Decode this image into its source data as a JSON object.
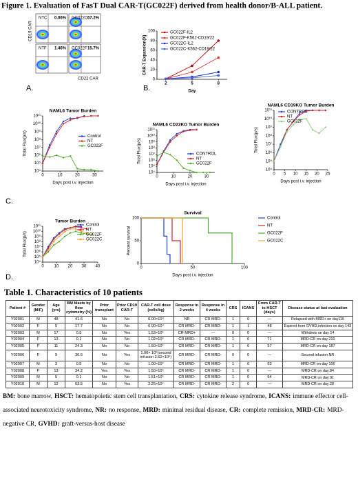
{
  "title": "Figure 1. Evaluation of FasT Dual CAR-T(GC022F) derived from health donor/B-ALL patient.",
  "panel_labels": [
    "A.",
    "B.",
    "C.",
    "D."
  ],
  "flow_panel": {
    "y_label": "CD19 CAR",
    "x_label": "CD22 CAR",
    "plots": [
      {
        "name": "NTC",
        "label": "0.06%"
      },
      {
        "name": "GC022C",
        "label": "67.2%"
      },
      {
        "name": "NTF",
        "label": "1.46%"
      },
      {
        "name": "GC022F",
        "label": "15.7%"
      }
    ]
  },
  "chart_data": [
    {
      "type": "line",
      "x_label": "Day",
      "y_label": "CAR-T Expansion(X)",
      "x": [
        2,
        5,
        8
      ],
      "xlim": [
        1,
        9
      ],
      "xticks": [
        2,
        5,
        8
      ],
      "ylim": [
        0,
        100
      ],
      "yticks": [
        0,
        20,
        40,
        60,
        80,
        100
      ],
      "legend": "upper left",
      "series": [
        {
          "name": "GC022F-IL2",
          "color": "#c00000",
          "values": [
            1,
            28,
            80
          ]
        },
        {
          "name": "GC022F-K562-CD19/22",
          "color": "#e03030",
          "values": [
            1,
            15,
            45
          ]
        },
        {
          "name": "GC022C-IL2",
          "color": "#1f2fc0",
          "values": [
            1,
            5,
            15
          ]
        },
        {
          "name": "GC022C-K562-CD19/22",
          "color": "#4060e0",
          "values": [
            1,
            3,
            8
          ]
        }
      ]
    },
    {
      "type": "line",
      "log": true,
      "title": "NAML6 Tumor Burden",
      "x_label": "Days post i.v. injection",
      "y_label": "Total Flux(p/s)",
      "x": [
        0,
        4,
        8,
        12,
        16,
        20,
        24,
        28,
        32
      ],
      "xlim": [
        0,
        35
      ],
      "xticks": [
        0,
        10,
        20,
        30
      ],
      "ylim": [
        10000,
        100000000000
      ],
      "legend": "center right",
      "yticks": [
        {
          "value": 10000,
          "label": "10⁴"
        },
        {
          "value": 100000,
          "label": "10⁵"
        },
        {
          "value": 1000000,
          "label": "10⁶"
        },
        {
          "value": 10000000,
          "label": "10⁷"
        },
        {
          "value": 100000000,
          "label": "10⁸"
        },
        {
          "value": 1000000000,
          "label": "10⁹"
        },
        {
          "value": 10000000000,
          "label": "10¹⁰"
        },
        {
          "value": 100000000000,
          "label": "10¹¹"
        }
      ],
      "series": [
        {
          "name": "Control",
          "color": "#1f3fd1",
          "values": [
            100000,
            20000000,
            1000000000,
            20000000000,
            50000000000,
            50000000000,
            100000000000,
            null,
            null
          ]
        },
        {
          "name": "NT",
          "color": "#d62020",
          "values": [
            100000,
            10000000,
            500000000,
            10000000000,
            30000000000,
            60000000000,
            80000000000,
            100000000000,
            100000000000
          ]
        },
        {
          "name": "GC022F",
          "color": "#4caf2a",
          "values": [
            800000,
            600000,
            1000000,
            500000,
            800000,
            20000,
            15000,
            15000,
            10000
          ]
        }
      ]
    },
    {
      "type": "line",
      "log": true,
      "title": "NAML6 CD22KO Tumor Burden",
      "x_label": "Days post i.v. injection",
      "y_label": "Total Flux(p/s)",
      "x": [
        0,
        4,
        8,
        12,
        16,
        20,
        24,
        28,
        32
      ],
      "xlim": [
        0,
        35
      ],
      "xticks": [
        0,
        10,
        20,
        30
      ],
      "ylim": [
        10000,
        100000000000
      ],
      "legend": "lower right",
      "yticks": [
        {
          "value": 10000,
          "label": "10⁴"
        },
        {
          "value": 100000,
          "label": "10⁵"
        },
        {
          "value": 1000000,
          "label": "10⁶"
        },
        {
          "value": 10000000,
          "label": "10⁷"
        },
        {
          "value": 100000000,
          "label": "10⁸"
        },
        {
          "value": 1000000000,
          "label": "10⁹"
        },
        {
          "value": 10000000000,
          "label": "10¹⁰"
        },
        {
          "value": 100000000000,
          "label": "10¹¹"
        }
      ],
      "series": [
        {
          "name": "CONTROL",
          "color": "#1f3fd1",
          "values": [
            200000,
            30000000,
            2000000000,
            20000000000,
            60000000000,
            100000000000,
            100000000000,
            null,
            null
          ]
        },
        {
          "name": "NT",
          "color": "#d62020",
          "values": [
            200000,
            20000000,
            1000000000,
            10000000000,
            50000000000,
            80000000000,
            100000000000,
            null,
            null
          ]
        },
        {
          "name": "GC022F",
          "color": "#4caf2a",
          "values": [
            5000000,
            20000000,
            8000000,
            1000000,
            50000,
            20000,
            10000,
            10000,
            10000
          ]
        }
      ]
    },
    {
      "type": "line",
      "log": true,
      "title": "NAML6 CD19KO Tumor Burden",
      "x_label": "Days post i.v. injection",
      "y_label": "Total Flux(p/s)",
      "x": [
        0,
        3,
        6,
        9,
        12,
        15,
        18,
        21,
        24
      ],
      "xlim": [
        0,
        25
      ],
      "xticks": [
        0,
        5,
        10,
        15,
        20,
        25
      ],
      "ylim": [
        10000,
        100000000000
      ],
      "legend": "upper left",
      "yticks": [
        {
          "value": 10000,
          "label": "10⁴"
        },
        {
          "value": 100000,
          "label": "10⁵"
        },
        {
          "value": 1000000,
          "label": "10⁶"
        },
        {
          "value": 10000000,
          "label": "10⁷"
        },
        {
          "value": 100000000,
          "label": "10⁸"
        },
        {
          "value": 1000000000,
          "label": "10⁹"
        },
        {
          "value": 10000000000,
          "label": "10¹⁰"
        },
        {
          "value": 100000000000,
          "label": "10¹¹"
        }
      ],
      "series": [
        {
          "name": "CONTROL",
          "color": "#1f3fd1",
          "values": [
            100000,
            10000000,
            500000000,
            5000000000,
            50000000000,
            100000000000,
            100000000000,
            100000000000,
            100000000000
          ]
        },
        {
          "name": "NT",
          "color": "#d62020",
          "values": [
            100000,
            5000000,
            500000000,
            5000000000,
            30000000000,
            80000000000,
            100000000000,
            100000000000,
            100000000000
          ]
        },
        {
          "name": "GC022F",
          "color": "#8fcf7a",
          "values": [
            100000,
            5000000,
            300000000,
            2000000000,
            8000000000,
            10000000000,
            500000000,
            200000000,
            1000000000
          ]
        }
      ]
    },
    {
      "type": "line",
      "log": true,
      "title": "Tumor Burden",
      "y_label": "Total Flux(p/s)",
      "x": [
        0,
        4,
        8,
        12,
        16,
        20,
        24,
        28,
        32,
        36
      ],
      "xlim": [
        0,
        40
      ],
      "xticks": [
        0,
        10,
        20,
        30,
        40
      ],
      "ylim": [
        10000,
        100000000000
      ],
      "legend": "upper right",
      "yticks": [
        {
          "value": 10000,
          "label": "10⁴"
        },
        {
          "value": 100000,
          "label": "10⁵"
        },
        {
          "value": 1000000,
          "label": "10⁶"
        },
        {
          "value": 10000000,
          "label": "10⁷"
        },
        {
          "value": 100000000,
          "label": "10⁸"
        },
        {
          "value": 1000000000,
          "label": "10⁹"
        },
        {
          "value": 10000000000,
          "label": "10¹⁰"
        },
        {
          "value": 100000000000,
          "label": "10¹¹"
        }
      ],
      "series": [
        {
          "name": "Control",
          "color": "#1f3fd1",
          "values": [
            100000,
            10000000,
            500000000,
            5000000000,
            30000000000,
            50000000000,
            100000000000,
            80000000000,
            null,
            null
          ]
        },
        {
          "name": "NT",
          "color": "#d62020",
          "values": [
            100000,
            5000000,
            300000000,
            3000000000,
            20000000000,
            50000000000,
            80000000000,
            50000000000,
            30000000000,
            null
          ]
        },
        {
          "name": "GC022F",
          "color": "#4caf2a",
          "values": [
            100000,
            1000000,
            20000000,
            100000000,
            1000000000,
            5000000000,
            10000000000,
            5000000000,
            3000000000,
            3000000000
          ]
        },
        {
          "name": "GC022C",
          "color": "#f0a030",
          "values": [
            100000,
            2000000,
            100000000,
            1000000000,
            8000000000,
            30000000000,
            30000000000,
            10000000000,
            5000000000,
            2000000000
          ]
        }
      ]
    },
    {
      "type": "line",
      "steps": true,
      "title": "Survival",
      "x_label": "Days post i.v. injection",
      "y_label": "Percent survival",
      "xlim": [
        0,
        100
      ],
      "xticks": [
        0,
        50,
        100
      ],
      "ylim": [
        0,
        100
      ],
      "yticks": [
        0,
        50,
        100
      ],
      "legend": "right",
      "series": [
        {
          "name": "Control",
          "color": "#1f3fd1",
          "x": [
            0,
            22,
            25,
            28
          ],
          "values": [
            100,
            60,
            20,
            0
          ]
        },
        {
          "name": "NT",
          "color": "#d62020",
          "x": [
            0,
            30,
            38
          ],
          "values": [
            100,
            50,
            0
          ]
        },
        {
          "name": "GC022F",
          "color": "#4caf2a",
          "x": [
            0,
            65,
            88
          ],
          "values": [
            100,
            67,
            0
          ]
        },
        {
          "name": "GC022C",
          "color": "#f0a030",
          "x": [
            0,
            40
          ],
          "values": [
            100,
            0
          ]
        }
      ]
    }
  ],
  "table": {
    "title": "Table 1. Characteristics of 10 patients",
    "columns": [
      "Patient #",
      "Gender (M/F)",
      "Age (yrs)",
      "BM blasts by flow cytometry (%)",
      "Prior transplant",
      "Prior CD19 CAR-T",
      "CAR-T cell dose (cells/kg)",
      "Response in 2 weeks",
      "Response in 4 weeks",
      "CRS",
      "ICANS",
      "From CAR-T to HSCT (days)",
      "Disease status at last evaluation"
    ],
    "rows": [
      [
        "Y02001",
        "M",
        "48",
        "41.6",
        "No",
        "No",
        "6.00×10⁴",
        "NR",
        "CR MRD-",
        "1",
        "0",
        "—",
        "Relapsed with MRD+ on day116"
      ],
      [
        "Y02002",
        "F",
        "5",
        "17.7",
        "No",
        "No",
        "6.00×10⁴",
        "CR MRD-",
        "CR MRD-",
        "1",
        "1",
        "48",
        "Expired from GVHD,infection on day 143"
      ],
      [
        "Y02003",
        "M",
        "17",
        "0.5",
        "No",
        "Yes",
        "1.53×10⁵",
        "CR MRD+",
        "—",
        "0",
        "0",
        "—",
        "Withdrew on day 14"
      ],
      [
        "Y02004",
        "F",
        "13",
        "0.1",
        "No",
        "No",
        "1.02×10⁵",
        "CR MRD-",
        "CR MRD-",
        "1",
        "0",
        "71",
        "MRD-CR on day 210"
      ],
      [
        "Y02005",
        "F",
        "11",
        "24.3",
        "No",
        "No",
        "1.50×10⁵",
        "CR MRD-",
        "CR MRD-",
        "1",
        "0",
        "57",
        "MRD-CR on day 187"
      ],
      [
        "Y02006",
        "F",
        "9",
        "36.6",
        "No",
        "Yes",
        "1.00× 10⁵(second infusion 2.62×10⁵)",
        "CR MRD-",
        "CR MRD-",
        "0",
        "0",
        "—",
        "Second infusion NR"
      ],
      [
        "Y02007",
        "M",
        "3",
        "0.5",
        "No",
        "No",
        "1.00×10⁵",
        "CR MRD-",
        "CR MRD-",
        "1",
        "0",
        "63",
        "MRD-CR on day 106"
      ],
      [
        "Y02008",
        "F",
        "13",
        "34.2",
        "Yes",
        "Yes",
        "1.50×10⁵",
        "CR MRD-",
        "CR MRD-",
        "1",
        "0",
        "—",
        "MRD-CR on day 84"
      ],
      [
        "Y02009",
        "M",
        "5",
        "0.1",
        "No",
        "No",
        "1.51×10⁵",
        "CR MRD-",
        "CR MRD-",
        "1",
        "0",
        "64",
        "MRD-CR on day 91"
      ],
      [
        "Y02010",
        "M",
        "12",
        "63.5",
        "No",
        "Yes",
        "2.25×10⁵",
        "CR MRD-",
        "CR MRD-",
        "2",
        "0",
        "—",
        "MRD-CR on day 28"
      ]
    ]
  },
  "footnote": [
    {
      "term": "BM:",
      "text": "bone marrow,"
    },
    {
      "term": "HSCT:",
      "text": "hematopoietic stem cell transplantation,"
    },
    {
      "term": "CRS:",
      "text": "cytokine release syndrome,"
    },
    {
      "term": "ICANS:",
      "text": "immune effector cell-associated neurotoxicity syndrome,"
    },
    {
      "term": "NR:",
      "text": "no response,"
    },
    {
      "term": "MRD:",
      "text": "minimal residual disease,"
    },
    {
      "term": "CR:",
      "text": "complete remission,"
    },
    {
      "term": "MRD-CR:",
      "text": "MRD-negative CR,"
    },
    {
      "term": "GVHD:",
      "text": "graft-versus-host disease"
    }
  ]
}
